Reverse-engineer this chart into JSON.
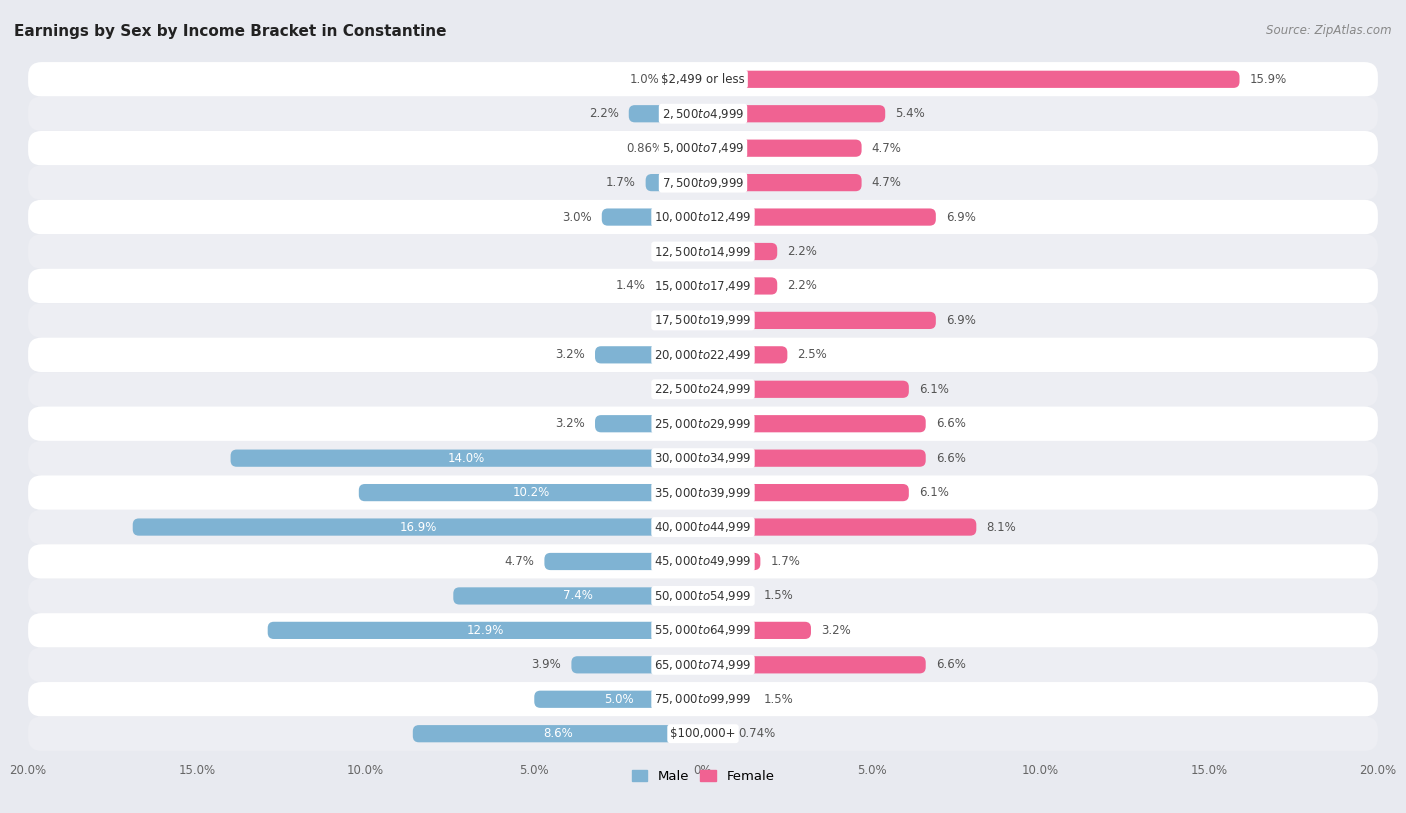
{
  "title": "Earnings by Sex by Income Bracket in Constantine",
  "source": "Source: ZipAtlas.com",
  "categories": [
    "$2,499 or less",
    "$2,500 to $4,999",
    "$5,000 to $7,499",
    "$7,500 to $9,999",
    "$10,000 to $12,499",
    "$12,500 to $14,999",
    "$15,000 to $17,499",
    "$17,500 to $19,999",
    "$20,000 to $22,499",
    "$22,500 to $24,999",
    "$25,000 to $29,999",
    "$30,000 to $34,999",
    "$35,000 to $39,999",
    "$40,000 to $44,999",
    "$45,000 to $49,999",
    "$50,000 to $54,999",
    "$55,000 to $64,999",
    "$65,000 to $74,999",
    "$75,000 to $99,999",
    "$100,000+"
  ],
  "male_values": [
    1.0,
    2.2,
    0.86,
    1.7,
    3.0,
    0.0,
    1.4,
    0.0,
    3.2,
    0.0,
    3.2,
    14.0,
    10.2,
    16.9,
    4.7,
    7.4,
    12.9,
    3.9,
    5.0,
    8.6
  ],
  "female_values": [
    15.9,
    5.4,
    4.7,
    4.7,
    6.9,
    2.2,
    2.2,
    6.9,
    2.5,
    6.1,
    6.6,
    6.6,
    6.1,
    8.1,
    1.7,
    1.5,
    3.2,
    6.6,
    1.5,
    0.74
  ],
  "male_color": "#7fb3d3",
  "female_color": "#f06292",
  "background_color": "#e8eaf0",
  "row_color_odd": "#ffffff",
  "row_color_even": "#edeef3",
  "xlim": 20.0,
  "title_fontsize": 11,
  "source_fontsize": 8.5,
  "label_fontsize": 8.5,
  "category_fontsize": 8.5,
  "legend_fontsize": 9.5,
  "axis_label_fontsize": 8.5,
  "bar_height": 0.5
}
